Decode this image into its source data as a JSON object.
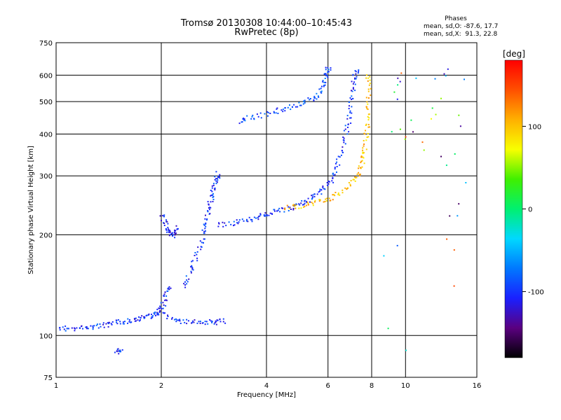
{
  "title_line1": "Tromsø 20130308 10:44:00–10:45:43",
  "title_line2": "RwPretec (8p)",
  "phase_box": {
    "heading": "Phases",
    "o_line": "mean, sd,O: -87.6, 17.7",
    "x_line": "mean, sd,X:  91.3, 22.8"
  },
  "chart_data": {
    "type": "scatter",
    "xlabel": "Frequency [MHz]",
    "ylabel": "Stationary phase Virtual Height [km]",
    "x_scale": "log2",
    "y_scale": "log",
    "xlim": [
      1,
      16
    ],
    "ylim": [
      75,
      750
    ],
    "x_ticks": [
      1,
      2,
      4,
      6,
      8,
      10,
      16
    ],
    "y_ticks": [
      75,
      100,
      200,
      300,
      400,
      500,
      600,
      750
    ],
    "x_gridlines": [
      2,
      4,
      6,
      8,
      10
    ],
    "y_gridlines": [
      100,
      200,
      300,
      400,
      500,
      600
    ],
    "colorbar": {
      "label": "[deg]",
      "ticks": [
        100,
        0,
        -100
      ],
      "range": [
        -180,
        180
      ],
      "colors": [
        "#000000",
        "#5a0080",
        "#1a20ff",
        "#0078ff",
        "#00d8ff",
        "#00f070",
        "#40f000",
        "#f8ff00",
        "#ffb000",
        "#ff5000",
        "#ff0000"
      ]
    },
    "o_mode_color": "#2030e0",
    "x_mode_color": "#e8e020",
    "traces": [
      {
        "mode": "O",
        "phase": -100,
        "points": [
          [
            1.02,
            106
          ],
          [
            1.1,
            105
          ],
          [
            1.2,
            106
          ],
          [
            1.3,
            107
          ],
          [
            1.4,
            108
          ],
          [
            1.5,
            110
          ],
          [
            1.6,
            111
          ],
          [
            1.7,
            112
          ],
          [
            1.8,
            114
          ],
          [
            1.9,
            116
          ],
          [
            1.95,
            118
          ],
          [
            2.0,
            122
          ],
          [
            2.05,
            131
          ],
          [
            2.1,
            140
          ]
        ]
      },
      {
        "mode": "O",
        "phase": -100,
        "points": [
          [
            2.0,
            116
          ],
          [
            2.2,
            112
          ],
          [
            2.4,
            110
          ],
          [
            2.6,
            110
          ],
          [
            2.8,
            110
          ],
          [
            3.0,
            111
          ]
        ]
      },
      {
        "mode": "O",
        "phase": -100,
        "points": [
          [
            2.3,
            140
          ],
          [
            2.4,
            155
          ],
          [
            2.5,
            170
          ],
          [
            2.6,
            190
          ],
          [
            2.65,
            210
          ],
          [
            2.7,
            230
          ],
          [
            2.75,
            250
          ],
          [
            2.8,
            270
          ],
          [
            2.85,
            290
          ],
          [
            2.9,
            305
          ]
        ]
      },
      {
        "mode": "O",
        "phase": -110,
        "points": [
          [
            2.0,
            228
          ],
          [
            2.05,
            215
          ],
          [
            2.1,
            205
          ],
          [
            2.15,
            200
          ],
          [
            2.2,
            210
          ]
        ]
      },
      {
        "mode": "O",
        "phase": -100,
        "points": [
          [
            2.9,
            215
          ],
          [
            3.2,
            218
          ],
          [
            3.5,
            222
          ],
          [
            3.8,
            228
          ],
          [
            4.0,
            232
          ],
          [
            4.3,
            236
          ],
          [
            4.6,
            240
          ],
          [
            5.0,
            248
          ],
          [
            5.3,
            256
          ],
          [
            5.6,
            268
          ],
          [
            5.9,
            280
          ],
          [
            6.2,
            300
          ],
          [
            6.4,
            330
          ],
          [
            6.6,
            370
          ],
          [
            6.8,
            420
          ],
          [
            6.9,
            470
          ],
          [
            7.0,
            520
          ],
          [
            7.1,
            580
          ],
          [
            7.2,
            620
          ]
        ]
      },
      {
        "mode": "X",
        "phase": 100,
        "points": [
          [
            4.5,
            242
          ],
          [
            5.0,
            245
          ],
          [
            5.5,
            250
          ],
          [
            6.0,
            256
          ],
          [
            6.5,
            268
          ],
          [
            7.0,
            285
          ],
          [
            7.3,
            305
          ],
          [
            7.5,
            330
          ],
          [
            7.6,
            360
          ],
          [
            7.7,
            400
          ],
          [
            7.75,
            450
          ],
          [
            7.8,
            520
          ],
          [
            7.8,
            600
          ]
        ]
      },
      {
        "mode": "O",
        "phase": -90,
        "points": [
          [
            3.3,
            440
          ],
          [
            3.6,
            450
          ],
          [
            4.0,
            462
          ],
          [
            4.4,
            475
          ],
          [
            4.8,
            490
          ],
          [
            5.2,
            505
          ],
          [
            5.6,
            520
          ],
          [
            5.8,
            560
          ],
          [
            5.9,
            610
          ],
          [
            6.0,
            630
          ]
        ]
      },
      {
        "mode": "O",
        "phase": -100,
        "points": [
          [
            1.48,
            90
          ],
          [
            1.52,
            91
          ]
        ]
      }
    ]
  }
}
